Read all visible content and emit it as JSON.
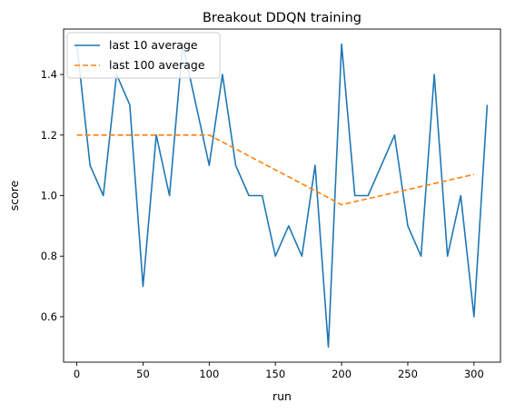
{
  "chart_data": {
    "type": "line",
    "title": "Breakout DDQN training",
    "xlabel": "run",
    "ylabel": "score",
    "xlim": [
      -10,
      320
    ],
    "ylim": [
      0.45,
      1.55
    ],
    "xticks": [
      0,
      50,
      100,
      150,
      200,
      250,
      300
    ],
    "yticks": [
      0.6,
      0.8,
      1.0,
      1.2,
      1.4
    ],
    "xtick_labels": [
      "0",
      "50",
      "100",
      "150",
      "200",
      "250",
      "300"
    ],
    "ytick_labels": [
      "0.6",
      "0.8",
      "1.0",
      "1.2",
      "1.4"
    ],
    "grid": false,
    "legend_position": "top-left",
    "series": [
      {
        "name": "last 10 average",
        "color": "#1f77b4",
        "style": "solid",
        "x": [
          0,
          10,
          20,
          30,
          40,
          50,
          60,
          70,
          80,
          90,
          100,
          110,
          120,
          130,
          140,
          150,
          160,
          170,
          180,
          190,
          200,
          210,
          220,
          230,
          240,
          250,
          260,
          270,
          280,
          290,
          300,
          310
        ],
        "y": [
          1.5,
          1.1,
          1.0,
          1.4,
          1.3,
          0.7,
          1.2,
          1.0,
          1.5,
          1.3,
          1.1,
          1.4,
          1.1,
          1.0,
          1.0,
          0.8,
          0.9,
          0.8,
          1.1,
          0.5,
          1.5,
          1.0,
          1.0,
          1.1,
          1.2,
          0.9,
          0.8,
          1.4,
          0.8,
          1.0,
          0.6,
          1.3
        ]
      },
      {
        "name": "last 100 average",
        "color": "#ff7f0e",
        "style": "dashed",
        "x": [
          0,
          100,
          200,
          300
        ],
        "y": [
          1.2,
          1.2,
          0.97,
          1.07
        ]
      }
    ]
  }
}
